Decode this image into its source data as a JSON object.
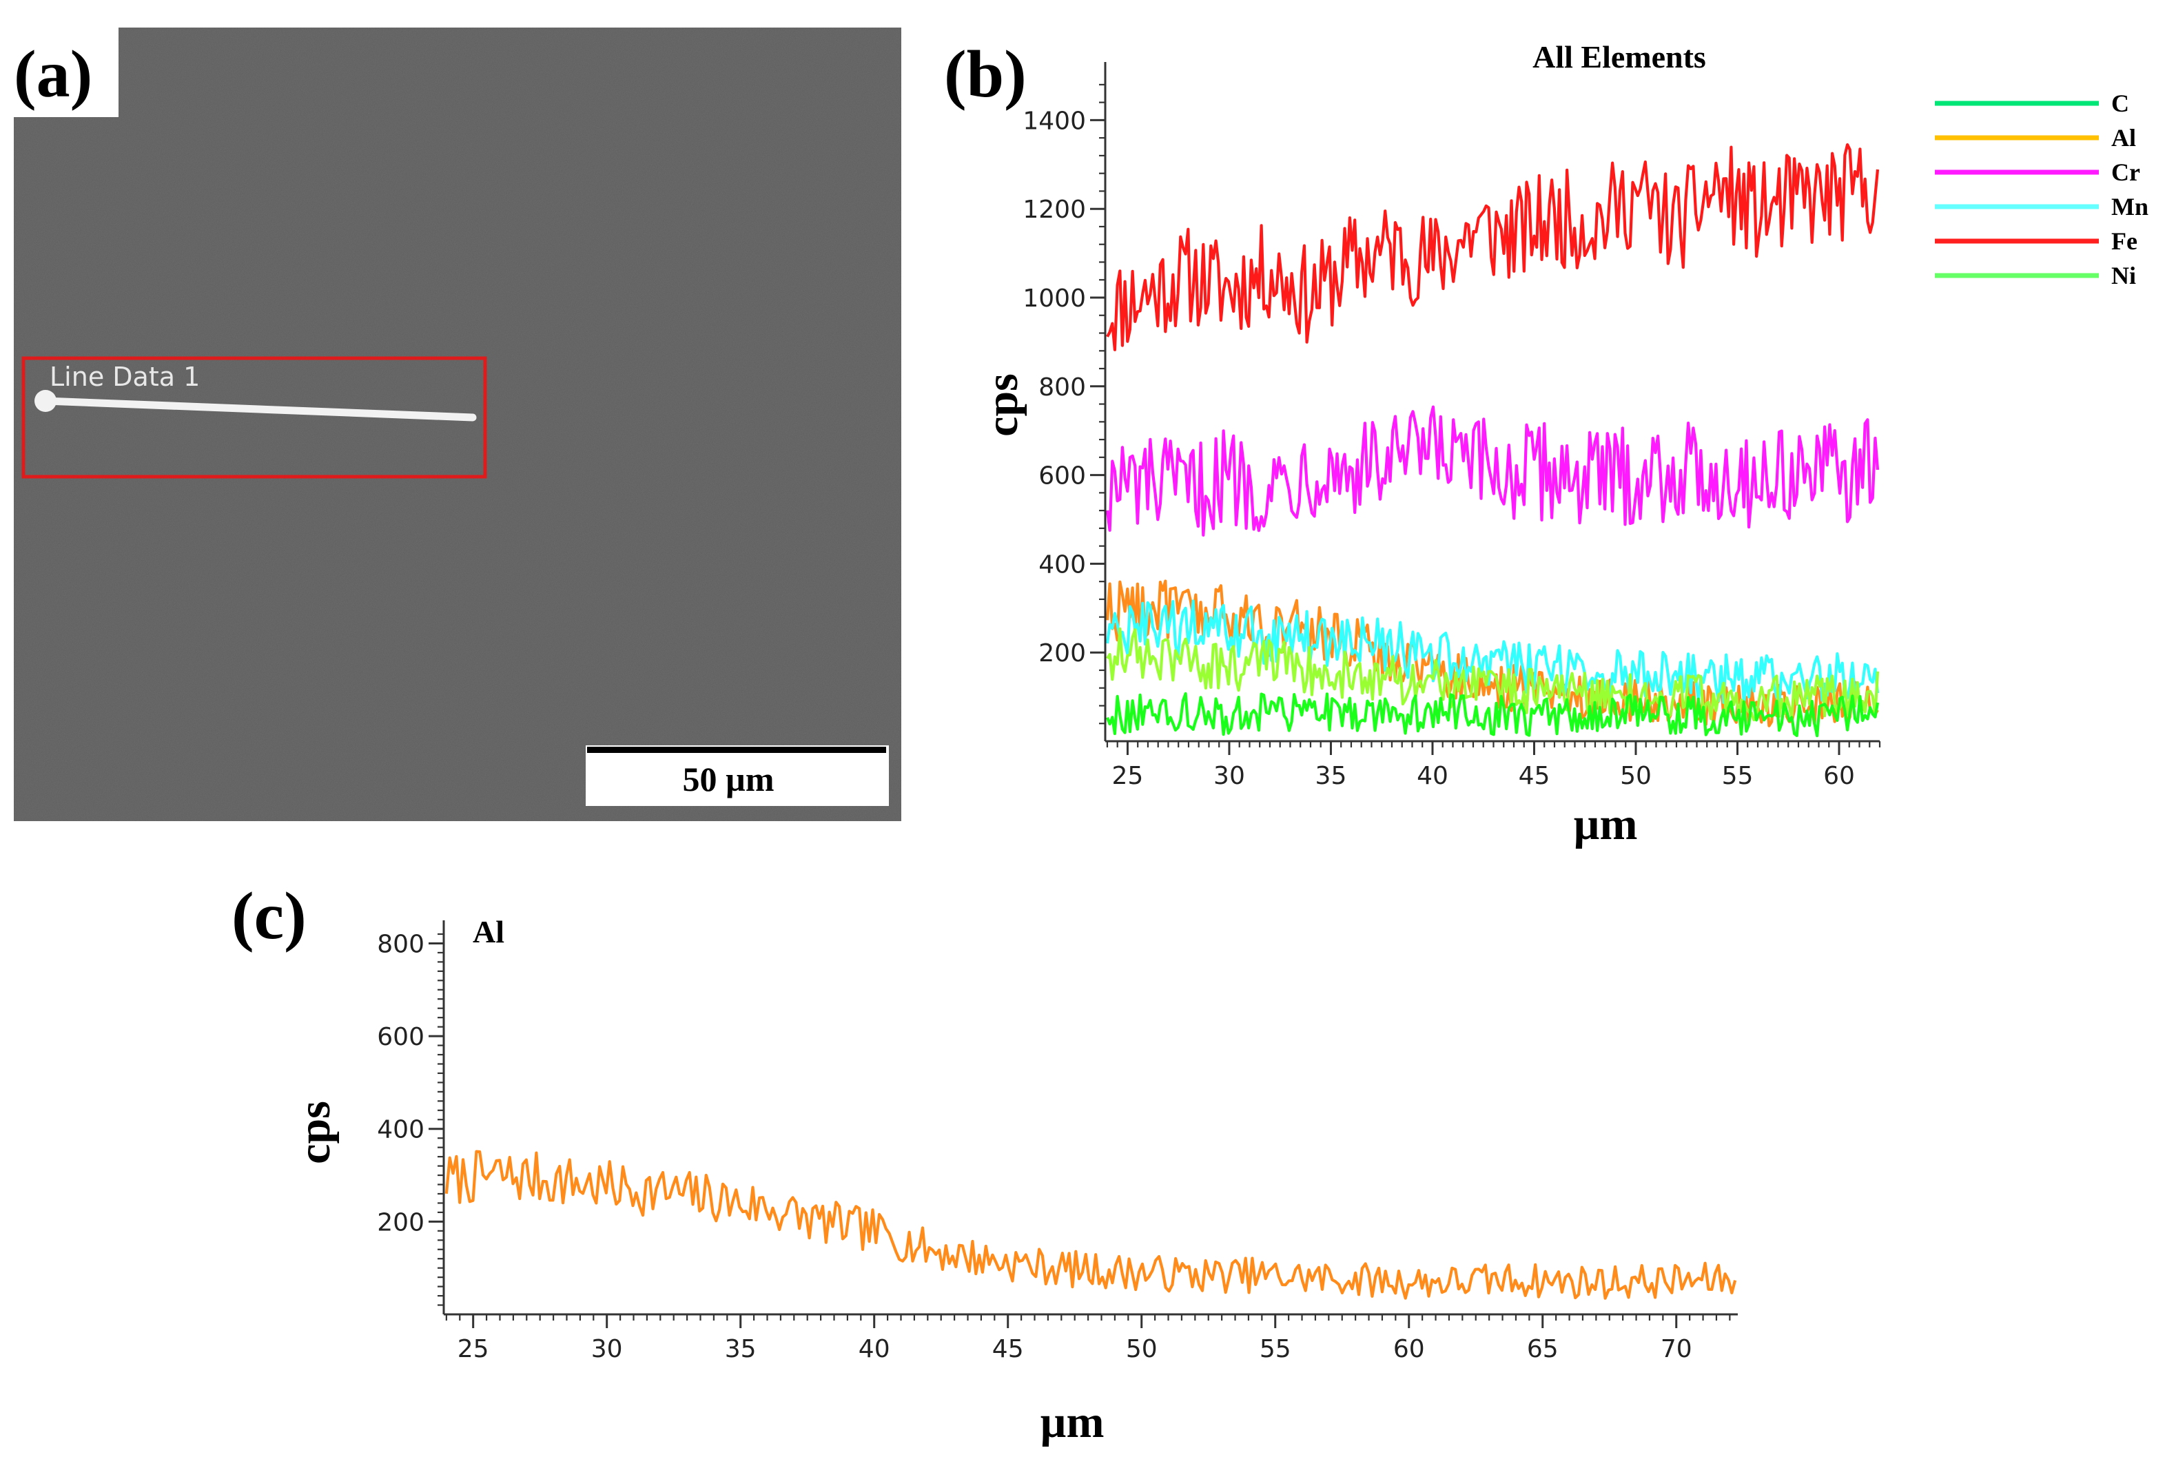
{
  "panel_a": {
    "letter": "(a)",
    "line_label": "Line Data 1",
    "scale_bar": "50 µm",
    "colors": {
      "background": "#5e5e5e",
      "box": "#e01b1b",
      "line": "#f2f2f2"
    }
  },
  "panel_b": {
    "letter": "(b)"
  },
  "panel_c": {
    "letter": "(c)"
  },
  "chart_data": [
    {
      "type": "line",
      "title": "All Elements",
      "xlabel": "µm",
      "ylabel": "cps",
      "xlim": [
        23.9,
        62
      ],
      "ylim": [
        0,
        1500
      ],
      "xticks": [
        "25",
        "30",
        "35",
        "40",
        "45",
        "50",
        "55",
        "60"
      ],
      "yticks": [
        "200",
        "400",
        "600",
        "800",
        "1000",
        "1200",
        "1400"
      ],
      "legend_placement": "right",
      "legend": [
        {
          "name": "C",
          "color": "#00e676"
        },
        {
          "name": "Al",
          "color": "#ffc000"
        },
        {
          "name": "Cr",
          "color": "#ff1aff"
        },
        {
          "name": "Mn",
          "color": "#66ffff"
        },
        {
          "name": "Fe",
          "color": "#ff1f1f"
        },
        {
          "name": "Ni",
          "color": "#66ff66"
        }
      ],
      "series": [
        {
          "name": "Fe",
          "color": "#ff1a1a",
          "x": [
            24,
            26,
            28,
            30,
            32,
            34,
            36,
            38,
            40,
            42,
            44,
            46,
            48,
            50,
            52,
            54,
            56,
            58,
            60,
            62
          ],
          "values": [
            970,
            1010,
            1050,
            1020,
            1060,
            1000,
            1080,
            1110,
            1080,
            1150,
            1140,
            1180,
            1170,
            1230,
            1160,
            1250,
            1190,
            1220,
            1230,
            1260
          ]
        },
        {
          "name": "Cr",
          "color": "#ff1aff",
          "x": [
            24,
            26,
            28,
            30,
            32,
            34,
            36,
            38,
            40,
            42,
            44,
            46,
            48,
            50,
            52,
            54,
            56,
            58,
            60,
            62
          ],
          "values": [
            570,
            580,
            560,
            600,
            570,
            620,
            610,
            630,
            650,
            620,
            600,
            610,
            590,
            600,
            610,
            600,
            590,
            610,
            600,
            620
          ]
        },
        {
          "name": "Al",
          "color": "#ff8c1a",
          "x": [
            24,
            26,
            28,
            30,
            32,
            34,
            36,
            38,
            40,
            42,
            44,
            46,
            48,
            50,
            52,
            54,
            56,
            58,
            60,
            62
          ],
          "values": [
            300,
            300,
            290,
            280,
            260,
            250,
            220,
            190,
            170,
            130,
            120,
            110,
            100,
            95,
            90,
            85,
            80,
            80,
            85,
            90
          ]
        },
        {
          "name": "Mn",
          "color": "#33ffff",
          "x": [
            24,
            26,
            28,
            30,
            32,
            34,
            36,
            38,
            40,
            42,
            44,
            46,
            48,
            50,
            52,
            54,
            56,
            58,
            60,
            62
          ],
          "values": [
            240,
            250,
            250,
            240,
            240,
            230,
            220,
            210,
            190,
            180,
            170,
            160,
            150,
            150,
            145,
            140,
            140,
            140,
            145,
            150
          ]
        },
        {
          "name": "Ni",
          "color": "#99ff33",
          "x": [
            24,
            26,
            28,
            30,
            32,
            34,
            36,
            38,
            40,
            42,
            44,
            46,
            48,
            50,
            52,
            54,
            56,
            58,
            60,
            62
          ],
          "values": [
            200,
            190,
            180,
            170,
            170,
            160,
            150,
            140,
            130,
            120,
            115,
            110,
            105,
            100,
            100,
            100,
            95,
            100,
            100,
            110
          ]
        },
        {
          "name": "C",
          "color": "#1aff1a",
          "x": [
            24,
            26,
            28,
            30,
            32,
            34,
            36,
            38,
            40,
            42,
            44,
            46,
            48,
            50,
            52,
            54,
            56,
            58,
            60,
            62
          ],
          "values": [
            60,
            60,
            65,
            60,
            65,
            60,
            65,
            60,
            65,
            60,
            60,
            55,
            60,
            60,
            55,
            60,
            60,
            55,
            60,
            60
          ]
        }
      ]
    },
    {
      "type": "line",
      "title": "Al",
      "xlabel": "µm",
      "ylabel": "cps",
      "xlim": [
        23.9,
        72.3
      ],
      "ylim": [
        0,
        820
      ],
      "xticks": [
        "25",
        "30",
        "35",
        "40",
        "45",
        "50",
        "55",
        "60",
        "65",
        "70"
      ],
      "yticks": [
        "200",
        "400",
        "600",
        "800"
      ],
      "series": [
        {
          "name": "Al",
          "color": "#ff8c1a",
          "x": [
            24,
            26,
            28,
            30,
            32,
            34,
            36,
            38,
            40,
            42,
            44,
            46,
            48,
            50,
            52,
            54,
            56,
            58,
            60,
            62,
            64,
            66,
            68,
            70,
            72
          ],
          "values": [
            290,
            300,
            290,
            275,
            265,
            250,
            230,
            200,
            180,
            140,
            120,
            105,
            95,
            90,
            85,
            85,
            80,
            75,
            70,
            70,
            75,
            70,
            70,
            72,
            75
          ]
        }
      ]
    }
  ]
}
